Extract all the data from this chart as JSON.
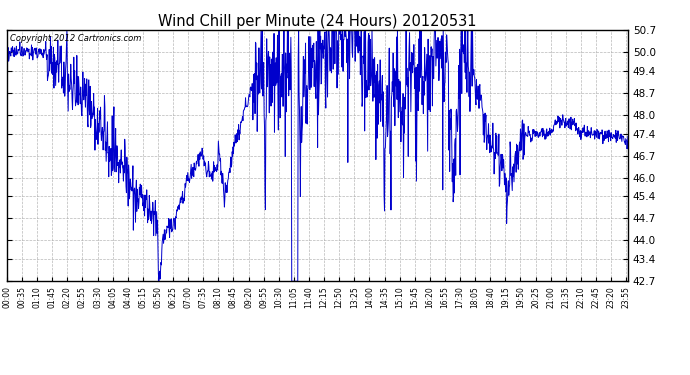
{
  "title": "Wind Chill per Minute (24 Hours) 20120531",
  "copyright": "Copyright 2012 Cartronics.com",
  "line_color": "#0000cc",
  "background_color": "#ffffff",
  "grid_color": "#b0b0b0",
  "ylim": [
    42.7,
    50.7
  ],
  "yticks": [
    42.7,
    43.4,
    44.0,
    44.7,
    45.4,
    46.0,
    46.7,
    47.4,
    48.0,
    48.7,
    49.4,
    50.0,
    50.7
  ],
  "xlabel_fontsize": 5.5,
  "ylabel_fontsize": 7.5,
  "title_fontsize": 10.5,
  "xtick_step_minutes": 35
}
